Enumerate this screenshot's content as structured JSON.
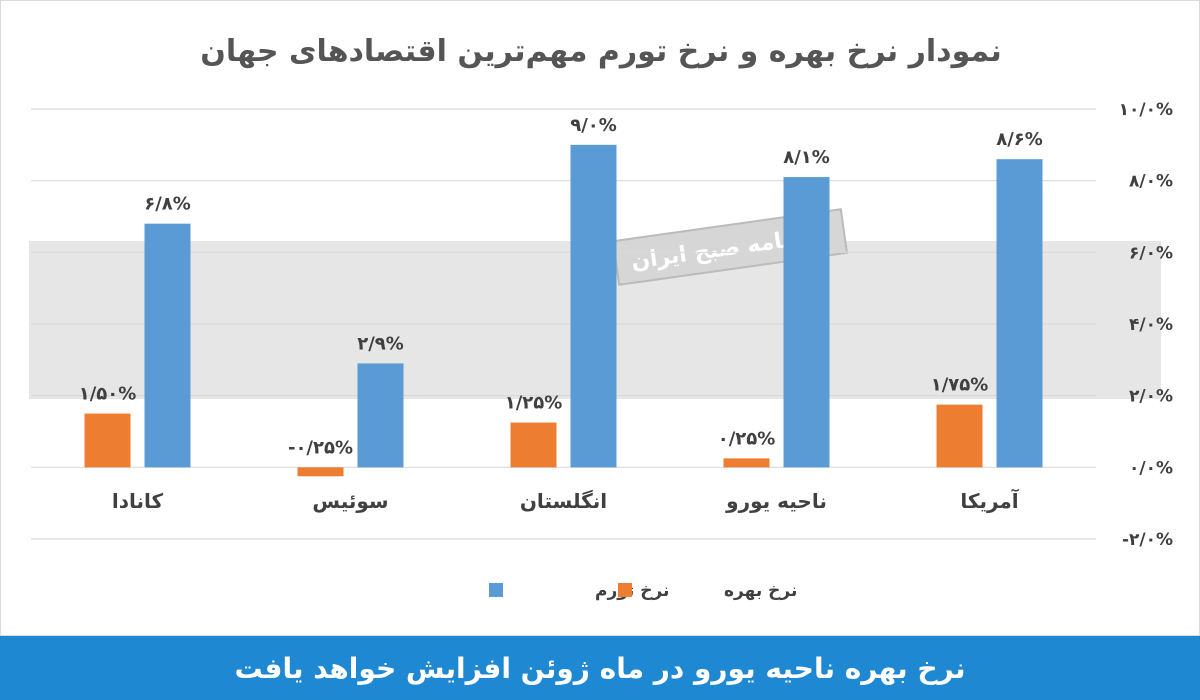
{
  "colors": {
    "inflation": "#5b9bd5",
    "interest": "#ed7d31",
    "grid": "#d9d9d9",
    "caption_bg": "#1e88d2",
    "watermark_band": "#e6e6e6"
  },
  "watermark": {
    "stamp": "روزنامه صبح ایران"
  },
  "caption": "نرخ بهره ناحیه یورو در ماه ژوئن افزایش خواهد یافت",
  "chart_data": {
    "type": "bar",
    "title": "نمودار نرخ بهره و نرخ تورم مهم‌ترین اقتصادهای جهان",
    "categories": [
      "کانادا",
      "سوئیس",
      "انگلستان",
      "ناحیه یورو",
      "آمریکا"
    ],
    "series": [
      {
        "name": "نرخ بهره",
        "values": [
          1.5,
          -0.25,
          1.25,
          0.25,
          1.75
        ],
        "labels": [
          "۱/۵۰%",
          "-۰/۲۵%",
          "۱/۲۵%",
          "۰/۲۵%",
          "۱/۷۵%"
        ]
      },
      {
        "name": "نرخ تورم",
        "values": [
          6.8,
          2.9,
          9.0,
          8.1,
          8.6
        ],
        "labels": [
          "۶/۸%",
          "۲/۹%",
          "۹/۰%",
          "۸/۱%",
          "۸/۶%"
        ]
      }
    ],
    "ylim": [
      -2,
      10
    ],
    "yticks": [
      10,
      8,
      6,
      4,
      2,
      0,
      -2
    ],
    "ytick_labels": [
      "۱۰/۰%",
      "۸/۰%",
      "۶/۰%",
      "۴/۰%",
      "۲/۰%",
      "۰/۰%",
      "-۲/۰%"
    ],
    "grid": true,
    "legend_position": "bottom"
  }
}
